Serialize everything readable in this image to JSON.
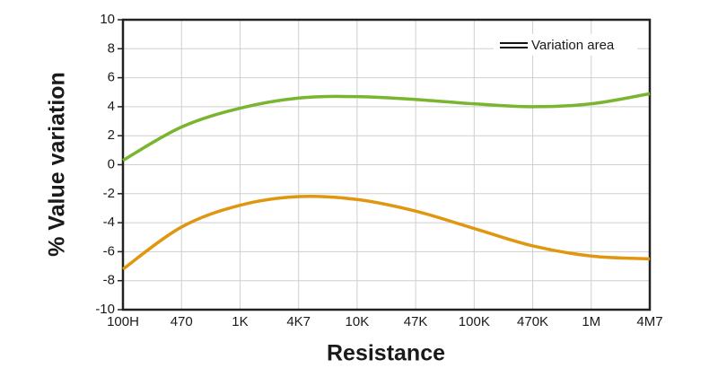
{
  "chart_data": {
    "type": "line",
    "x_label": "Resistance",
    "y_label": "% Value variation",
    "legend_label": "Variation area",
    "categories": [
      "100H",
      "470",
      "1K",
      "4K7",
      "10K",
      "47K",
      "100K",
      "470K",
      "1M",
      "4M7"
    ],
    "series": [
      {
        "color": "#7ab530",
        "values": [
          0.3,
          2.6,
          3.9,
          4.6,
          4.7,
          4.5,
          4.2,
          4.0,
          4.2,
          4.9
        ]
      },
      {
        "color": "#e0960f",
        "values": [
          -7.2,
          -4.3,
          -2.8,
          -2.2,
          -2.4,
          -3.2,
          -4.4,
          -5.6,
          -6.3,
          -6.5
        ]
      }
    ],
    "ylim": [
      -10,
      10
    ],
    "yticks": [
      -10,
      -8,
      -6,
      -4,
      -2,
      0,
      2,
      4,
      6,
      8,
      10
    ],
    "grid": true
  }
}
